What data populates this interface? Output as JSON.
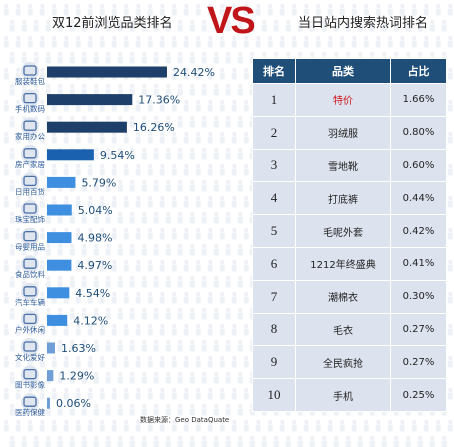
{
  "titles": {
    "left": "双12前浏览品类排名",
    "vs": "VS",
    "right": "当日站内搜索热词排名"
  },
  "source": "数据来源：Geo DataQuate",
  "colors": {
    "bar_dark": "#1f3f6b",
    "bar_mid": "#1a62b0",
    "bar_light": "#3f8fe0",
    "bar_pale": "#6f9fd6",
    "table_header": "#1f4e79",
    "table_cell": "#dde3ee",
    "highlight": "#d0141a",
    "vs": "#c0161a"
  },
  "chart_data": {
    "type": "bar",
    "orientation": "horizontal",
    "title": "双12前浏览品类排名",
    "categories": [
      "服装鞋包",
      "手机数码",
      "家用办公",
      "房产家居",
      "日用百货",
      "珠宝配饰",
      "母婴用品",
      "食品饮料",
      "汽车车辆",
      "户外休闲",
      "文化爱好",
      "图书影像",
      "医药保健"
    ],
    "icons": [
      "handbag-icon",
      "phone-icon",
      "printer-icon",
      "house-icon",
      "basket-icon",
      "jewelry-icon",
      "stroller-icon",
      "food-icon",
      "car-icon",
      "tent-icon",
      "hobby-icon",
      "book-icon",
      "medical-icon"
    ],
    "values": [
      24.42,
      17.36,
      16.26,
      9.54,
      5.79,
      5.04,
      4.98,
      4.97,
      4.54,
      4.12,
      1.63,
      1.29,
      0.06
    ],
    "labels": [
      "24.42%",
      "17.36%",
      "16.26%",
      "9.54%",
      "5.79%",
      "5.04%",
      "4.98%",
      "4.97%",
      "4.54%",
      "4.12%",
      "1.63%",
      "1.29%",
      "0.06%"
    ],
    "unit": "%"
  },
  "table": {
    "headers": [
      "排名",
      "品类",
      "占比"
    ],
    "rows": [
      {
        "rank": "1",
        "category": "特价",
        "share": "1.66%",
        "highlight": true
      },
      {
        "rank": "2",
        "category": "羽绒服",
        "share": "0.80%"
      },
      {
        "rank": "3",
        "category": "雪地靴",
        "share": "0.60%"
      },
      {
        "rank": "4",
        "category": "打底裤",
        "share": "0.44%"
      },
      {
        "rank": "5",
        "category": "毛呢外套",
        "share": "0.42%"
      },
      {
        "rank": "6",
        "category": "1212年终盛典",
        "share": "0.41%"
      },
      {
        "rank": "7",
        "category": "潮棉衣",
        "share": "0.30%"
      },
      {
        "rank": "8",
        "category": "毛衣",
        "share": "0.27%"
      },
      {
        "rank": "9",
        "category": "全民疯抢",
        "share": "0.27%"
      },
      {
        "rank": "10",
        "category": "手机",
        "share": "0.25%"
      }
    ]
  }
}
